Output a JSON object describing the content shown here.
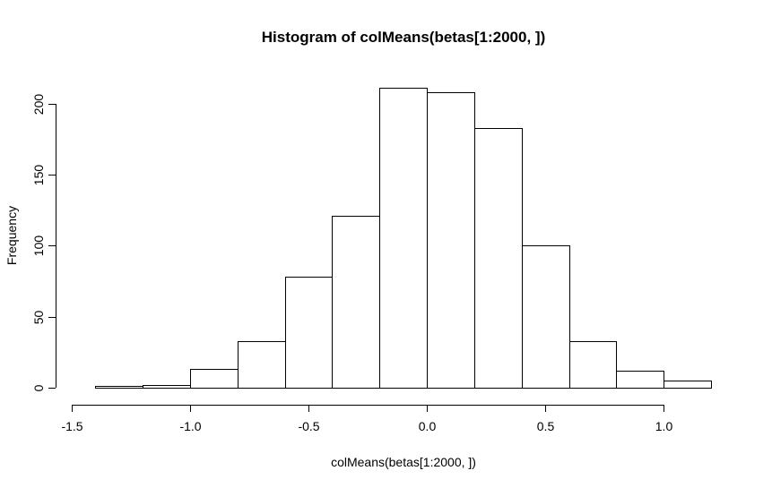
{
  "chart_data": {
    "type": "bar",
    "title": "Histogram of colMeans(betas[1:2000, ])",
    "xlabel": "colMeans(betas[1:2000, ])",
    "ylabel": "Frequency",
    "bins": [
      {
        "start": -1.4,
        "end": -1.2,
        "count": 1
      },
      {
        "start": -1.2,
        "end": -1.0,
        "count": 2
      },
      {
        "start": -1.0,
        "end": -0.8,
        "count": 13
      },
      {
        "start": -0.8,
        "end": -0.6,
        "count": 33
      },
      {
        "start": -0.6,
        "end": -0.4,
        "count": 78
      },
      {
        "start": -0.4,
        "end": -0.2,
        "count": 121
      },
      {
        "start": -0.2,
        "end": 0.0,
        "count": 211
      },
      {
        "start": 0.0,
        "end": 0.2,
        "count": 208
      },
      {
        "start": 0.2,
        "end": 0.4,
        "count": 183
      },
      {
        "start": 0.4,
        "end": 0.6,
        "count": 100
      },
      {
        "start": 0.6,
        "end": 0.8,
        "count": 33
      },
      {
        "start": 0.8,
        "end": 1.0,
        "count": 12
      },
      {
        "start": 1.0,
        "end": 1.2,
        "count": 5
      }
    ],
    "xlim": [
      -1.5,
      1.2
    ],
    "ylim": [
      0,
      215
    ],
    "x_ticks": [
      -1.5,
      -1.0,
      -0.5,
      0.0,
      0.5,
      1.0
    ],
    "x_tick_labels": [
      "-1.5",
      "-1.0",
      "-0.5",
      "0.0",
      "0.5",
      "1.0"
    ],
    "y_ticks": [
      0,
      50,
      100,
      150,
      200
    ],
    "y_tick_labels": [
      "0",
      "50",
      "100",
      "150",
      "200"
    ],
    "grid": false,
    "colors": {
      "bar_fill": "#ffffff",
      "bar_stroke": "#000000",
      "axis": "#000000",
      "background": "#ffffff"
    }
  }
}
